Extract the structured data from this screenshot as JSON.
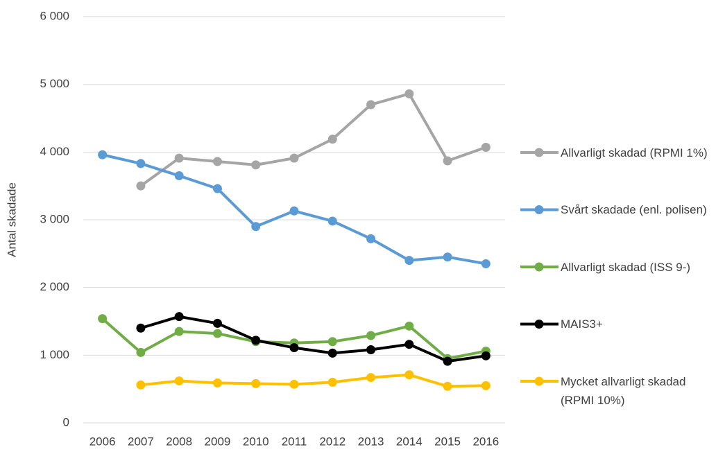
{
  "chart_data": {
    "type": "line",
    "y_label": "Antal skadade",
    "categories": [
      "2006",
      "2007",
      "2008",
      "2009",
      "2010",
      "2011",
      "2012",
      "2013",
      "2014",
      "2015",
      "2016"
    ],
    "series": [
      {
        "name": "Allvarligt skadad (RPMI 1%)",
        "color": "#a5a5a5",
        "values": [
          null,
          3500,
          3910,
          3860,
          3810,
          3910,
          4190,
          4700,
          4860,
          3870,
          4070
        ]
      },
      {
        "name": "Svårt skadade (enl. polisen)",
        "color": "#5b9bd5",
        "values": [
          3960,
          3830,
          3650,
          3460,
          2900,
          3130,
          2980,
          2720,
          2400,
          2450,
          2350
        ]
      },
      {
        "name": "Allvarligt skadad (ISS 9-)",
        "color": "#70ad47",
        "values": [
          1540,
          1040,
          1350,
          1320,
          1200,
          1180,
          1200,
          1290,
          1430,
          950,
          1060
        ]
      },
      {
        "name": "MAIS3+",
        "color": "#000000",
        "values": [
          null,
          1400,
          1570,
          1470,
          1220,
          1110,
          1030,
          1080,
          1160,
          910,
          990
        ]
      },
      {
        "name": "Mycket allvarligt skadad (RPMI 10%)",
        "color": "#ffc000",
        "values": [
          null,
          560,
          620,
          590,
          580,
          570,
          600,
          670,
          710,
          540,
          550
        ]
      }
    ],
    "ylim": [
      0,
      6000
    ],
    "yticks": [
      0,
      {
        "value": 1000,
        "label": "1 000"
      },
      {
        "value": 2000,
        "label": "2 000"
      },
      {
        "value": 3000,
        "label": "3 000"
      },
      {
        "value": 4000,
        "label": "4 000"
      },
      {
        "value": 5000,
        "label": "5 000"
      },
      {
        "value": 6000,
        "label": "6 000"
      }
    ],
    "grid": true,
    "legend": "right"
  }
}
